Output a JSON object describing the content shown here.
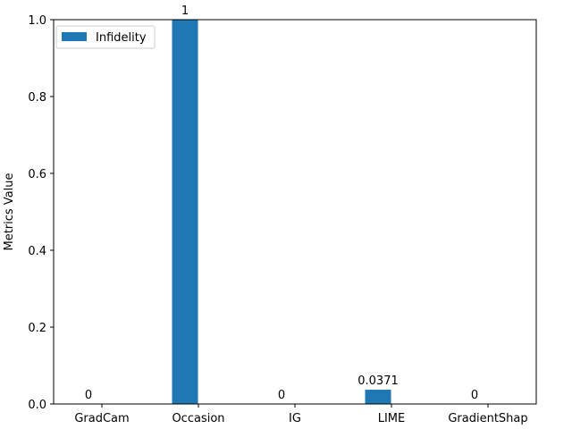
{
  "chart_data": {
    "type": "bar",
    "categories": [
      "GradCam",
      "Occasion",
      "IG",
      "LIME",
      "GradientShap"
    ],
    "series": [
      {
        "name": "Infidelity",
        "values": [
          0,
          1,
          0,
          0.0371,
          0
        ],
        "labels": [
          "0",
          "1",
          "0",
          "0.0371",
          "0"
        ],
        "color": "#1f77b4"
      }
    ],
    "xlabel": "",
    "ylabel": "Metrics Value",
    "ylim": [
      0,
      1.0
    ],
    "yticks": [
      0.0,
      0.2,
      0.4,
      0.6,
      0.8,
      1.0
    ],
    "ytick_labels": [
      "0.0",
      "0.2",
      "0.4",
      "0.6",
      "0.8",
      "1.0"
    ],
    "grid": false,
    "legend": {
      "position": "top-left",
      "entries": [
        "Infidelity"
      ]
    }
  }
}
